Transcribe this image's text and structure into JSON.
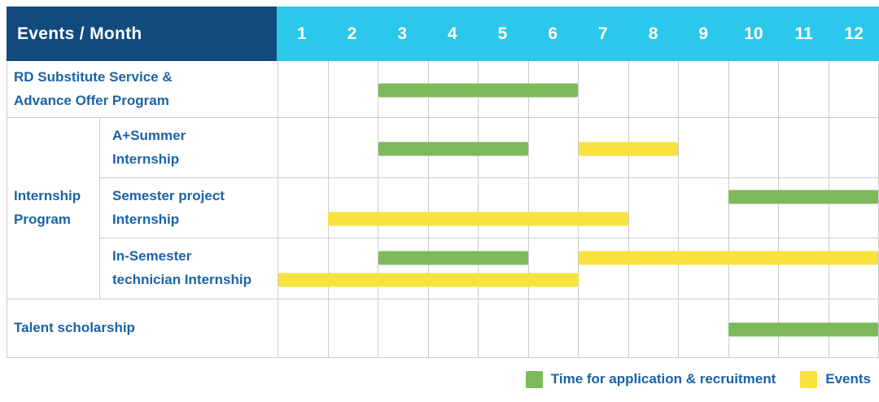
{
  "header": {
    "title": "Events / Month",
    "months": [
      "1",
      "2",
      "3",
      "4",
      "5",
      "6",
      "7",
      "8",
      "9",
      "10",
      "11",
      "12"
    ]
  },
  "colors": {
    "navy": "#114A7D",
    "cyan": "#2BC8EB",
    "green": "#7CBA59",
    "yellow": "#F8E23E",
    "label_blue": "#1B63A8",
    "grid": "#C9CCCE",
    "header_text": "#FFFFFF",
    "background": "#FFFFFF"
  },
  "chart_data": {
    "type": "bar",
    "subtype": "gantt-timeline",
    "title": "Events / Month",
    "x_axis": {
      "unit": "month",
      "min": 1,
      "max": 12,
      "ticks": [
        "1",
        "2",
        "3",
        "4",
        "5",
        "6",
        "7",
        "8",
        "9",
        "10",
        "11",
        "12"
      ]
    },
    "grid": true,
    "legend_position": "bottom-right",
    "legend": [
      {
        "key": "recruitment",
        "label": "Time for application & recruitment",
        "color_key": "green"
      },
      {
        "key": "events",
        "label": "Events",
        "color_key": "yellow"
      }
    ],
    "rows": [
      {
        "group": "",
        "label": "RD Substitute Service &\nAdvance Offer Program",
        "bars": [
          {
            "series": "recruitment",
            "start": 3,
            "end": 6,
            "lane": "single"
          }
        ]
      },
      {
        "group": "Internship\nProgram",
        "label": "A+Summer\nInternship",
        "bars": [
          {
            "series": "recruitment",
            "start": 3,
            "end": 5,
            "lane": "single"
          },
          {
            "series": "events",
            "start": 7,
            "end": 8,
            "lane": "single"
          }
        ]
      },
      {
        "group": "Internship\nProgram",
        "label": "Semester project\nInternship",
        "bars": [
          {
            "series": "recruitment",
            "start": 10,
            "end": 12,
            "lane": "top"
          },
          {
            "series": "events",
            "start": 2,
            "end": 7,
            "lane": "bottom"
          }
        ]
      },
      {
        "group": "Internship\nProgram",
        "label": "In-Semester\ntechnician Internship",
        "bars": [
          {
            "series": "recruitment",
            "start": 3,
            "end": 5,
            "lane": "top"
          },
          {
            "series": "events",
            "start": 7,
            "end": 12,
            "lane": "top"
          },
          {
            "series": "events",
            "start": 1,
            "end": 6,
            "lane": "bottom"
          }
        ]
      },
      {
        "group": "",
        "label": "Talent scholarship",
        "bars": [
          {
            "series": "recruitment",
            "start": 10,
            "end": 12,
            "lane": "single"
          }
        ]
      }
    ]
  }
}
